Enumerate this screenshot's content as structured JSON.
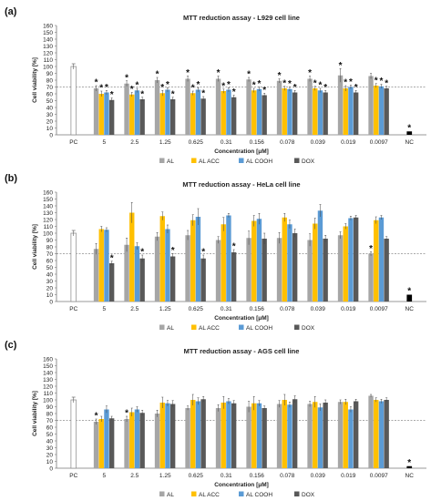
{
  "chart_data": [
    {
      "type": "bar",
      "panel_label": "(a)",
      "title": "MTT reduction assay - L929 cell line",
      "xlabel": "Concentration [μM]",
      "ylabel": "Cell viability [%]",
      "ylim": [
        0,
        160
      ],
      "yticks": [
        0,
        10,
        20,
        30,
        40,
        50,
        60,
        70,
        80,
        90,
        100,
        110,
        120,
        130,
        140,
        150,
        160
      ],
      "reference_line": 70,
      "categories": [
        "5",
        "2.5",
        "1.25",
        "0.625",
        "0.31",
        "0.156",
        "0.078",
        "0.039",
        "0.019",
        "0.0097"
      ],
      "pc": {
        "label": "PC",
        "value": 100
      },
      "nc": {
        "label": "NC",
        "value": 5,
        "star": true
      },
      "series": [
        {
          "name": "AL",
          "color": "#a6a6a6",
          "values": [
            68,
            75,
            80,
            82,
            82,
            81,
            79,
            82,
            87,
            86
          ],
          "errors": [
            4,
            4,
            4,
            4,
            4,
            3,
            3,
            4,
            10,
            4
          ],
          "stars": [
            true,
            true,
            true,
            true,
            true,
            true,
            true,
            true,
            true,
            false
          ]
        },
        {
          "name": "AL ACC",
          "color": "#ffc000",
          "values": [
            60,
            59,
            61,
            61,
            64,
            65,
            68,
            68,
            68,
            72
          ],
          "errors": [
            4,
            3,
            4,
            3,
            3,
            3,
            3,
            3,
            4,
            3
          ],
          "stars": [
            true,
            true,
            true,
            true,
            true,
            true,
            true,
            true,
            true,
            true
          ]
        },
        {
          "name": "AL COOH",
          "color": "#5b9bd5",
          "values": [
            62,
            65,
            66,
            66,
            66,
            67,
            67,
            65,
            70,
            71
          ],
          "errors": [
            3,
            3,
            3,
            3,
            3,
            3,
            3,
            3,
            3,
            3
          ],
          "stars": [
            true,
            true,
            true,
            true,
            true,
            true,
            true,
            true,
            true,
            true
          ]
        },
        {
          "name": "DOX",
          "color": "#595959",
          "values": [
            51,
            52,
            52,
            53,
            55,
            58,
            62,
            62,
            62,
            68
          ],
          "errors": [
            3,
            3,
            3,
            3,
            3,
            3,
            3,
            3,
            3,
            3
          ],
          "stars": [
            true,
            true,
            true,
            true,
            true,
            true,
            true,
            true,
            true,
            true
          ]
        }
      ],
      "legend": "bottom"
    },
    {
      "type": "bar",
      "panel_label": "(b)",
      "title": "MTT reduction assay - HeLa cell line",
      "xlabel": "Concentration [μM]",
      "ylabel": "Cell viability [%]",
      "ylim": [
        0,
        160
      ],
      "yticks": [
        0,
        10,
        20,
        30,
        40,
        50,
        60,
        70,
        80,
        90,
        100,
        110,
        120,
        130,
        140,
        150,
        160
      ],
      "reference_line": 70,
      "categories": [
        "5",
        "2.5",
        "1.25",
        "0.625",
        "0.31",
        "0.156",
        "0.078",
        "0.039",
        "0.019",
        "0.0097"
      ],
      "pc": {
        "label": "PC",
        "value": 100
      },
      "nc": {
        "label": "NC",
        "value": 10,
        "star": true
      },
      "series": [
        {
          "name": "AL",
          "color": "#a6a6a6",
          "values": [
            77,
            83,
            95,
            97,
            90,
            93,
            93,
            90,
            97,
            70
          ],
          "errors": [
            8,
            10,
            6,
            7,
            5,
            10,
            8,
            9,
            5,
            3
          ],
          "stars": [
            false,
            false,
            false,
            false,
            false,
            false,
            false,
            false,
            false,
            true
          ]
        },
        {
          "name": "AL ACC",
          "color": "#ffc000",
          "values": [
            106,
            130,
            125,
            119,
            113,
            118,
            123,
            114,
            110,
            119
          ],
          "errors": [
            4,
            15,
            6,
            8,
            10,
            8,
            6,
            8,
            4,
            5
          ],
          "stars": [
            false,
            false,
            false,
            false,
            false,
            false,
            false,
            false,
            false,
            false
          ]
        },
        {
          "name": "AL COOH",
          "color": "#5b9bd5",
          "values": [
            105,
            81,
            106,
            124,
            126,
            121,
            113,
            133,
            122,
            123
          ],
          "errors": [
            3,
            5,
            6,
            12,
            3,
            8,
            6,
            9,
            3,
            3
          ],
          "stars": [
            false,
            false,
            false,
            false,
            false,
            false,
            false,
            false,
            false,
            false
          ]
        },
        {
          "name": "DOX",
          "color": "#595959",
          "values": [
            56,
            63,
            66,
            63,
            72,
            92,
            100,
            92,
            123,
            92
          ],
          "errors": [
            3,
            5,
            4,
            5,
            4,
            8,
            6,
            5,
            3,
            3
          ],
          "stars": [
            true,
            true,
            true,
            true,
            true,
            false,
            false,
            false,
            false,
            false
          ]
        }
      ],
      "legend": "bottom"
    },
    {
      "type": "bar",
      "panel_label": "(c)",
      "title": "MTT reduction assay - AGS cell line",
      "xlabel": "Concentration [μM]",
      "ylabel": "Cell viability [%]",
      "ylim": [
        0,
        160
      ],
      "yticks": [
        0,
        10,
        20,
        30,
        40,
        50,
        60,
        70,
        80,
        90,
        100,
        110,
        120,
        130,
        140,
        150,
        160
      ],
      "reference_line": 70,
      "categories": [
        "5",
        "2.5",
        "1.25",
        "0.625",
        "0.31",
        "0.156",
        "0.078",
        "0.039",
        "0.019",
        "0.0097"
      ],
      "pc": {
        "label": "PC",
        "value": 100
      },
      "nc": {
        "label": "NC",
        "value": 3,
        "star": true
      },
      "series": [
        {
          "name": "AL",
          "color": "#a6a6a6",
          "values": [
            68,
            72,
            80,
            88,
            88,
            90,
            94,
            94,
            97,
            106
          ],
          "errors": [
            4,
            4,
            5,
            3,
            5,
            8,
            5,
            4,
            3,
            2
          ],
          "stars": [
            true,
            true,
            false,
            false,
            false,
            false,
            false,
            false,
            false,
            false
          ]
        },
        {
          "name": "AL ACC",
          "color": "#ffc000",
          "values": [
            72,
            82,
            96,
            100,
            96,
            95,
            100,
            97,
            97,
            100
          ],
          "errors": [
            4,
            6,
            8,
            8,
            9,
            10,
            8,
            8,
            4,
            3
          ],
          "stars": [
            false,
            false,
            false,
            false,
            false,
            false,
            false,
            false,
            false,
            false
          ]
        },
        {
          "name": "AL COOH",
          "color": "#5b9bd5",
          "values": [
            86,
            86,
            95,
            98,
            98,
            95,
            93,
            89,
            86,
            98
          ],
          "errors": [
            5,
            4,
            4,
            5,
            4,
            4,
            4,
            5,
            4,
            3
          ],
          "stars": [
            false,
            false,
            false,
            false,
            false,
            false,
            false,
            false,
            false,
            false
          ]
        },
        {
          "name": "DOX",
          "color": "#595959",
          "values": [
            73,
            81,
            94,
            101,
            95,
            88,
            101,
            96,
            98,
            100
          ],
          "errors": [
            3,
            4,
            5,
            4,
            4,
            3,
            5,
            4,
            3,
            3
          ],
          "stars": [
            false,
            false,
            false,
            false,
            false,
            false,
            false,
            false,
            false,
            false
          ]
        }
      ],
      "legend": "bottom"
    }
  ],
  "star_symbol": "*"
}
